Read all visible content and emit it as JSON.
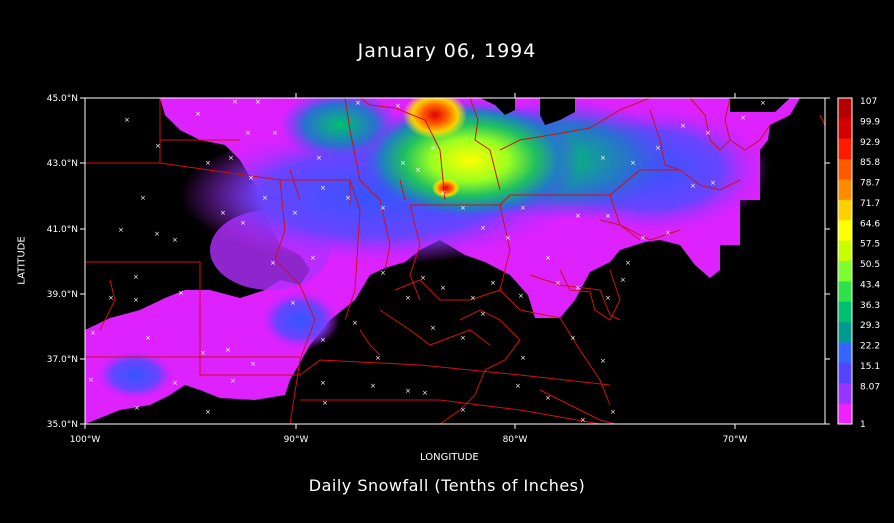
{
  "title": "January 06, 1994",
  "subtitle": "Daily Snowfall (Tenths of Inches)",
  "xaxis_label": "LONGITUDE",
  "yaxis_label": "LATITUDE",
  "x_ticks": [
    "100°W",
    "90°W",
    "80°W",
    "70°W"
  ],
  "y_ticks": [
    "45.0°N",
    "43.0°N",
    "41.0°N",
    "39.0°N",
    "37.0°N",
    "35.0°N"
  ],
  "colorbar": {
    "labels": [
      "107",
      "99.9",
      "92.9",
      "85.8",
      "78.7",
      "71.7",
      "64.6",
      "57.5",
      "50.5",
      "43.4",
      "36.3",
      "29.3",
      "22.2",
      "15.1",
      "8.07",
      "1"
    ],
    "colors": [
      "#b30000",
      "#d40000",
      "#ff1a00",
      "#ff5a00",
      "#ff8c00",
      "#ffd000",
      "#ffff00",
      "#c8ff00",
      "#7cff30",
      "#2fe04a",
      "#00c070",
      "#009a8f",
      "#3366ff",
      "#5544ff",
      "#9933ff",
      "#ee22ff"
    ]
  },
  "chart_data": {
    "type": "heatmap",
    "title": "January 06, 1994",
    "subtitle": "Daily Snowfall (Tenths of Inches)",
    "xlabel": "LONGITUDE",
    "ylabel": "LATITUDE",
    "xlim": [
      -100,
      -65
    ],
    "ylim": [
      35,
      45
    ],
    "colorbar_range": [
      1,
      107
    ],
    "units": "Tenths of Inches"
  }
}
